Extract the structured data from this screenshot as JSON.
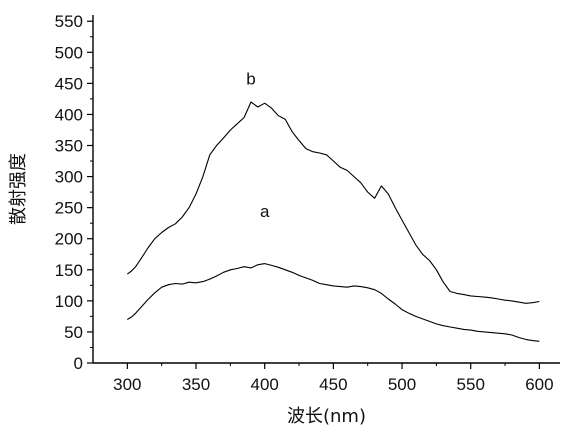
{
  "chart_data": {
    "type": "line",
    "xlabel": "波长(nm)",
    "ylabel": "散射强度",
    "xlim": [
      275,
      615
    ],
    "ylim": [
      0,
      560
    ],
    "xticks": [
      300,
      350,
      400,
      450,
      500,
      550,
      600
    ],
    "yticks": [
      0,
      50,
      100,
      150,
      200,
      250,
      300,
      350,
      400,
      450,
      500,
      550
    ],
    "grid": false,
    "legend": "none",
    "series": [
      {
        "name": "a",
        "label_at": [
          400,
          235
        ],
        "x": [
          300,
          303,
          306,
          310,
          315,
          320,
          325,
          330,
          335,
          340,
          345,
          350,
          355,
          360,
          365,
          370,
          375,
          380,
          385,
          390,
          395,
          400,
          405,
          410,
          415,
          420,
          425,
          430,
          435,
          440,
          445,
          450,
          455,
          460,
          465,
          470,
          475,
          480,
          485,
          490,
          495,
          500,
          505,
          510,
          515,
          520,
          525,
          530,
          535,
          540,
          545,
          550,
          555,
          560,
          565,
          570,
          575,
          580,
          585,
          590,
          595,
          600
        ],
        "y": [
          70,
          74,
          80,
          90,
          102,
          113,
          122,
          126,
          128,
          127,
          130,
          129,
          131,
          135,
          140,
          146,
          150,
          152,
          155,
          153,
          158,
          160,
          157,
          154,
          150,
          146,
          141,
          137,
          133,
          128,
          126,
          124,
          123,
          122,
          124,
          123,
          121,
          118,
          112,
          103,
          95,
          86,
          80,
          75,
          71,
          67,
          63,
          60,
          58,
          56,
          54,
          53,
          51,
          50,
          49,
          48,
          47,
          45,
          41,
          38,
          36,
          35
        ]
      },
      {
        "name": "b",
        "label_at": [
          390,
          448
        ],
        "x": [
          300,
          303,
          306,
          310,
          315,
          320,
          325,
          330,
          335,
          340,
          345,
          350,
          355,
          360,
          365,
          370,
          375,
          380,
          385,
          390,
          395,
          400,
          405,
          410,
          415,
          420,
          425,
          430,
          435,
          440,
          445,
          450,
          455,
          460,
          465,
          470,
          475,
          480,
          485,
          490,
          495,
          500,
          505,
          510,
          515,
          520,
          525,
          530,
          535,
          540,
          545,
          550,
          555,
          560,
          565,
          570,
          575,
          580,
          585,
          590,
          595,
          600
        ],
        "y": [
          143,
          148,
          155,
          168,
          185,
          200,
          210,
          218,
          224,
          235,
          250,
          272,
          300,
          335,
          350,
          362,
          375,
          385,
          395,
          420,
          412,
          418,
          410,
          398,
          392,
          372,
          358,
          345,
          340,
          338,
          335,
          325,
          315,
          310,
          300,
          290,
          275,
          265,
          285,
          272,
          250,
          230,
          210,
          190,
          175,
          165,
          150,
          130,
          115,
          112,
          110,
          108,
          107,
          106,
          105,
          103,
          101,
          100,
          98,
          96,
          97,
          99
        ]
      }
    ]
  }
}
